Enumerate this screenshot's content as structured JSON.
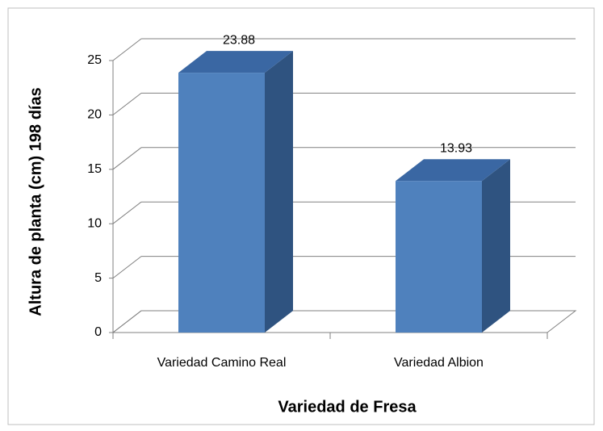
{
  "chart_data": {
    "type": "bar3d",
    "categories": [
      "Variedad Camino Real",
      "Variedad Albion"
    ],
    "values": [
      23.88,
      13.93
    ],
    "color": "#4f81bd",
    "xlabel": "Variedad de Fresa",
    "ylabel": "Altura de planta (cm) 198 días",
    "ylim": [
      0,
      25
    ],
    "yticks": [
      0,
      5,
      10,
      15,
      20,
      25
    ],
    "grid": true
  }
}
